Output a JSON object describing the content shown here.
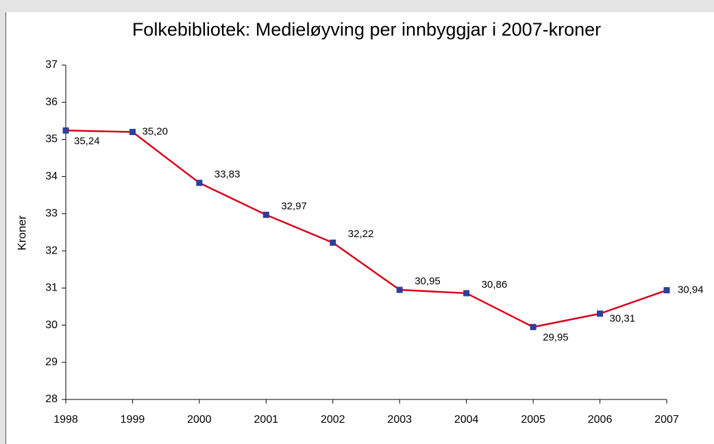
{
  "chart_data": {
    "type": "line",
    "title": "Folkebibliotek: Medieløyving per innbyggjar i 2007-kroner",
    "y_label": "Kroner",
    "categories": [
      "1998",
      "1999",
      "2000",
      "2001",
      "2002",
      "2003",
      "2004",
      "2005",
      "2006",
      "2007"
    ],
    "series": [
      {
        "name": "Medieløyving",
        "color": "#d9001b",
        "marker_color": "#2b3f9b",
        "values": [
          35.24,
          35.2,
          33.83,
          32.97,
          32.22,
          30.95,
          30.86,
          29.95,
          30.31,
          30.94
        ],
        "value_labels": [
          "35,24",
          "35,20",
          "33,83",
          "32,97",
          "32,22",
          "30,95",
          "30,86",
          "29,95",
          "30,31",
          "30,94"
        ]
      }
    ],
    "ylim": [
      28,
      37
    ],
    "yticks": [
      28,
      29,
      30,
      31,
      32,
      33,
      34,
      35,
      36,
      37
    ]
  }
}
